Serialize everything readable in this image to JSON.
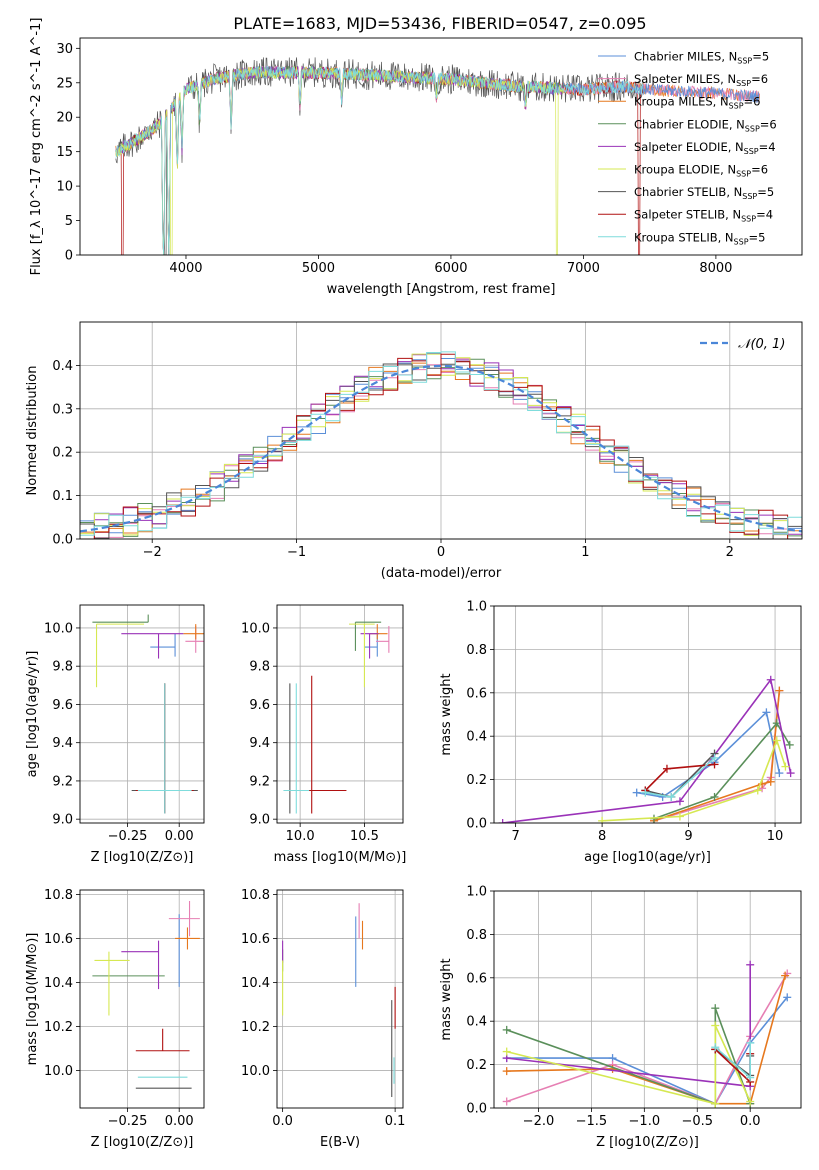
{
  "figure_title": "PLATE=1683, MJD=53436, FIBERID=0547, z=0.095",
  "colors": {
    "Chabrier MILES": "#5b8fd8",
    "Salpeter MILES": "#e67fb3",
    "Kroupa MILES": "#e6781e",
    "Chabrier ELODIE": "#5a8f5a",
    "Salpeter ELODIE": "#9a32b8",
    "Kroupa ELODIE": "#d6e852",
    "Chabrier STELIB": "#555555",
    "Salpeter STELIB": "#b01010",
    "Kroupa STELIB": "#7fdcdc"
  },
  "chart_data": [
    {
      "id": "spectrum",
      "type": "line",
      "xlabel": "wavelength [Angstrom, rest frame]",
      "ylabel": "Flux [f_λ 10^-17 erg cm^-2 s^-1 A^-1]",
      "xlim": [
        3200,
        8650
      ],
      "ylim": [
        0,
        31.5
      ],
      "xticks": [
        4000,
        5000,
        6000,
        7000,
        8000
      ],
      "yticks": [
        0,
        5,
        10,
        15,
        20,
        25,
        30
      ],
      "grid": false,
      "legend_position": "top-right",
      "legend": [
        {
          "name": "Chabrier MILES",
          "n": "5"
        },
        {
          "name": "Salpeter MILES",
          "n": "6"
        },
        {
          "name": "Kroupa MILES",
          "n": "6"
        },
        {
          "name": "Chabrier ELODIE",
          "n": "6"
        },
        {
          "name": "Salpeter ELODIE",
          "n": "4"
        },
        {
          "name": "Kroupa ELODIE",
          "n": "6"
        },
        {
          "name": "Chabrier STELIB",
          "n": "5"
        },
        {
          "name": "Salpeter STELIB",
          "n": "4"
        },
        {
          "name": "Kroupa STELIB",
          "n": "5"
        }
      ],
      "continuum_x": [
        3480,
        3650,
        3800,
        4000,
        4200,
        4500,
        5000,
        5500,
        6000,
        6500,
        7000,
        7300,
        7500,
        8000,
        8300
      ],
      "continuum_y": [
        15,
        17,
        19,
        24,
        25.5,
        26.5,
        26.5,
        26,
        25.5,
        24.5,
        24,
        24.5,
        24,
        23.5,
        23
      ],
      "features": [
        {
          "x": 3830,
          "depth": 26
        },
        {
          "x": 3870,
          "depth": 25
        },
        {
          "x": 3934,
          "depth": 10
        },
        {
          "x": 3970,
          "depth": 8
        },
        {
          "x": 4102,
          "depth": 6
        },
        {
          "x": 4340,
          "depth": 7
        },
        {
          "x": 4861,
          "depth": 5
        },
        {
          "x": 5175,
          "depth": 4
        },
        {
          "x": 5892,
          "depth": 3
        },
        {
          "x": 6563,
          "depth": 3
        }
      ],
      "drops": [
        {
          "x": 3520,
          "series": "Salpeter STELIB"
        },
        {
          "x": 3845,
          "series": "Chabrier STELIB"
        },
        {
          "x": 3890,
          "series": "Kroupa ELODIE"
        },
        {
          "x": 6800,
          "series": "Kroupa ELODIE"
        },
        {
          "x": 7420,
          "series": "Salpeter STELIB"
        }
      ]
    },
    {
      "id": "residual-histogram",
      "type": "histogram",
      "xlabel": "(data-model)/error",
      "ylabel": "Normed distribution",
      "xlim": [
        -2.5,
        2.5
      ],
      "ylim": [
        0,
        0.5
      ],
      "xticks": [
        -2,
        -1,
        0,
        1,
        2
      ],
      "yticks": [
        0.0,
        0.1,
        0.2,
        0.3,
        0.4
      ],
      "grid": true,
      "legend_position": "top-right",
      "reference": {
        "label": "N(0,1)",
        "mean": 0,
        "sigma": 1
      },
      "bin_width": 0.1,
      "series_count": 9
    },
    {
      "id": "age-vs-Z",
      "type": "errorbar",
      "xlabel": "Z [log10(Z/Z⊙)]",
      "ylabel": "age [log10(age/yr)]",
      "xlim": [
        -0.48,
        0.12
      ],
      "ylim": [
        8.98,
        10.12
      ],
      "xticks": [
        -0.25,
        0.0
      ],
      "yticks": [
        9.0,
        9.2,
        9.4,
        9.6,
        9.8,
        10.0
      ],
      "grid": true,
      "points": [
        {
          "series": "Chabrier MILES",
          "x": -0.02,
          "xerr": [
            0.12,
            0.0
          ],
          "y": 9.9,
          "yerr": [
            0.05,
            0.07
          ]
        },
        {
          "series": "Salpeter MILES",
          "x": 0.08,
          "xerr": [
            0.05,
            0.06
          ],
          "y": 9.93,
          "yerr": [
            0.06,
            0.08
          ]
        },
        {
          "series": "Kroupa MILES",
          "x": 0.08,
          "xerr": [
            0.06,
            0.04
          ],
          "y": 9.97,
          "yerr": [
            0.03,
            0.05
          ]
        },
        {
          "series": "Chabrier ELODIE",
          "x": -0.15,
          "xerr": [
            0.27,
            0.0
          ],
          "y": 10.03,
          "yerr": [
            0.0,
            0.04
          ]
        },
        {
          "series": "Salpeter ELODIE",
          "x": -0.1,
          "xerr": [
            0.18,
            0.12
          ],
          "y": 9.97,
          "yerr": [
            0.13,
            0.0
          ]
        },
        {
          "series": "Kroupa ELODIE",
          "x": -0.4,
          "xerr": [
            0.0,
            0.23
          ],
          "y": 10.02,
          "yerr": [
            0.33,
            0.0
          ]
        },
        {
          "series": "Chabrier STELIB",
          "x": -0.07,
          "xerr": [
            0.16,
            0.16
          ],
          "y": 9.15,
          "yerr": [
            0.12,
            0.56
          ]
        },
        {
          "series": "Salpeter STELIB",
          "x": -0.07,
          "xerr": [
            0.14,
            0.14
          ],
          "y": 9.15,
          "yerr": [
            0.12,
            0.56
          ]
        },
        {
          "series": "Kroupa STELIB",
          "x": -0.07,
          "xerr": [
            0.13,
            0.13
          ],
          "y": 9.15,
          "yerr": [
            0.12,
            0.56
          ]
        }
      ]
    },
    {
      "id": "age-vs-mass",
      "type": "errorbar",
      "xlabel": "mass [log10(M/M⊙)]",
      "xlim": [
        9.82,
        10.8
      ],
      "ylim": [
        8.98,
        10.12
      ],
      "xticks": [
        10.0,
        10.5
      ],
      "yticks": [
        9.0,
        9.2,
        9.4,
        9.6,
        9.8,
        10.0
      ],
      "grid": true,
      "points": [
        {
          "series": "Chabrier MILES",
          "x": 10.6,
          "xerr": [
            0.1,
            0.0
          ],
          "y": 9.9,
          "yerr": [
            0.05,
            0.07
          ]
        },
        {
          "series": "Salpeter MILES",
          "x": 10.69,
          "xerr": [
            0.1,
            0.0
          ],
          "y": 9.93,
          "yerr": [
            0.06,
            0.08
          ]
        },
        {
          "series": "Kroupa MILES",
          "x": 10.6,
          "xerr": [
            0.06,
            0.08
          ],
          "y": 9.97,
          "yerr": [
            0.03,
            0.05
          ]
        },
        {
          "series": "Chabrier ELODIE",
          "x": 10.43,
          "xerr": [
            0.0,
            0.2
          ],
          "y": 10.03,
          "yerr": [
            0.15,
            0.0
          ]
        },
        {
          "series": "Salpeter ELODIE",
          "x": 10.54,
          "xerr": [
            0.07,
            0.07
          ],
          "y": 9.97,
          "yerr": [
            0.13,
            0.0
          ]
        },
        {
          "series": "Kroupa ELODIE",
          "x": 10.5,
          "xerr": [
            0.12,
            0.08
          ],
          "y": 10.02,
          "yerr": [
            0.33,
            0.0
          ]
        },
        {
          "series": "Chabrier STELIB",
          "x": 9.92,
          "xerr": [
            0.0,
            0.0
          ],
          "y": 9.15,
          "yerr": [
            0.12,
            0.56
          ]
        },
        {
          "series": "Salpeter STELIB",
          "x": 10.09,
          "xerr": [
            0.21,
            0.27
          ],
          "y": 9.15,
          "yerr": [
            0.12,
            0.6
          ]
        },
        {
          "series": "Kroupa STELIB",
          "x": 9.97,
          "xerr": [
            0.1,
            0.1
          ],
          "y": 9.15,
          "yerr": [
            0.12,
            0.56
          ]
        }
      ]
    },
    {
      "id": "mass-weight-vs-age",
      "type": "line",
      "xlabel": "age [log10(age/yr)]",
      "ylabel": "mass weight",
      "xlim": [
        6.75,
        10.3
      ],
      "ylim": [
        0,
        1.0
      ],
      "xticks": [
        7,
        8,
        9,
        10
      ],
      "yticks": [
        0.0,
        0.2,
        0.4,
        0.6,
        0.8,
        1.0
      ],
      "grid": true,
      "series": [
        {
          "name": "Chabrier MILES",
          "x": [
            8.4,
            8.7,
            9.3,
            9.9,
            10.05
          ],
          "y": [
            0.14,
            0.12,
            0.28,
            0.51,
            0.23
          ]
        },
        {
          "name": "Salpeter MILES",
          "x": [
            8.6,
            9.85,
            9.95,
            10.05
          ],
          "y": [
            0.01,
            0.16,
            0.21,
            0.61
          ]
        },
        {
          "name": "Kroupa MILES",
          "x": [
            8.6,
            9.85,
            9.95,
            10.05
          ],
          "y": [
            0.01,
            0.18,
            0.19,
            0.61
          ]
        },
        {
          "name": "Chabrier ELODIE",
          "x": [
            8.6,
            9.3,
            10.02,
            10.17
          ],
          "y": [
            0.02,
            0.12,
            0.46,
            0.36
          ]
        },
        {
          "name": "Salpeter ELODIE",
          "x": [
            6.85,
            8.9,
            9.95,
            10.18
          ],
          "y": [
            0.0,
            0.1,
            0.66,
            0.23
          ]
        },
        {
          "name": "Kroupa ELODIE",
          "x": [
            8.0,
            8.9,
            9.8,
            10.02,
            10.12
          ],
          "y": [
            0.01,
            0.03,
            0.15,
            0.38,
            0.26
          ]
        },
        {
          "name": "Chabrier STELIB",
          "x": [
            8.5,
            8.8,
            9.3
          ],
          "y": [
            0.15,
            0.12,
            0.32
          ]
        },
        {
          "name": "Salpeter STELIB",
          "x": [
            8.5,
            8.75,
            9.3
          ],
          "y": [
            0.15,
            0.25,
            0.27
          ]
        },
        {
          "name": "Kroupa STELIB",
          "x": [
            8.5,
            8.8,
            9.3
          ],
          "y": [
            0.14,
            0.12,
            0.3
          ]
        }
      ]
    },
    {
      "id": "mass-vs-Z",
      "type": "errorbar",
      "xlabel": "Z [log10(Z/Z⊙)]",
      "ylabel": "mass [log10(M/M⊙)]",
      "xlim": [
        -0.48,
        0.12
      ],
      "ylim": [
        9.83,
        10.82
      ],
      "xticks": [
        -0.25,
        0.0
      ],
      "yticks": [
        10.0,
        10.2,
        10.4,
        10.6,
        10.8
      ],
      "grid": true,
      "points": [
        {
          "series": "Chabrier MILES",
          "x": 0.0,
          "xerr": [
            0.0,
            0.0
          ],
          "y": 10.6,
          "yerr": [
            0.22,
            0.11
          ]
        },
        {
          "series": "Salpeter MILES",
          "x": 0.05,
          "xerr": [
            0.1,
            0.05
          ],
          "y": 10.69,
          "yerr": [
            0.08,
            0.08
          ]
        },
        {
          "series": "Kroupa MILES",
          "x": 0.04,
          "xerr": [
            0.06,
            0.06
          ],
          "y": 10.6,
          "yerr": [
            0.05,
            0.05
          ]
        },
        {
          "series": "Chabrier ELODIE",
          "x": -0.25,
          "xerr": [
            0.17,
            0.18
          ],
          "y": 10.43,
          "yerr": [
            0.0,
            0.0
          ]
        },
        {
          "series": "Salpeter ELODIE",
          "x": -0.1,
          "xerr": [
            0.18,
            0.0
          ],
          "y": 10.54,
          "yerr": [
            0.17,
            0.05
          ]
        },
        {
          "series": "Kroupa ELODIE",
          "x": -0.34,
          "xerr": [
            0.07,
            0.1
          ],
          "y": 10.5,
          "yerr": [
            0.25,
            0.04
          ]
        },
        {
          "series": "Chabrier STELIB",
          "x": -0.07,
          "xerr": [
            0.14,
            0.13
          ],
          "y": 9.92,
          "yerr": [
            0.0,
            0.0
          ]
        },
        {
          "series": "Salpeter STELIB",
          "x": -0.08,
          "xerr": [
            0.13,
            0.13
          ],
          "y": 10.09,
          "yerr": [
            0.0,
            0.1
          ]
        },
        {
          "series": "Kroupa STELIB",
          "x": -0.08,
          "xerr": [
            0.12,
            0.12
          ],
          "y": 9.97,
          "yerr": [
            0.0,
            0.0
          ]
        }
      ]
    },
    {
      "id": "mass-vs-EBV",
      "type": "errorbar",
      "xlabel": "E(B-V)",
      "xlim": [
        -0.005,
        0.107
      ],
      "ylim": [
        9.83,
        10.82
      ],
      "xticks": [
        0.0,
        0.1
      ],
      "yticks": [
        10.0,
        10.2,
        10.4,
        10.6,
        10.8
      ],
      "grid": true,
      "points": [
        {
          "series": "Chabrier MILES",
          "x": 0.065,
          "y": 10.55,
          "yerr": [
            0.17,
            0.15
          ]
        },
        {
          "series": "Salpeter MILES",
          "x": 0.068,
          "y": 10.69,
          "yerr": [
            0.09,
            0.07
          ]
        },
        {
          "series": "Kroupa MILES",
          "x": 0.071,
          "y": 10.62,
          "yerr": [
            0.07,
            0.06
          ]
        },
        {
          "series": "Chabrier ELODIE",
          "x": 0.0,
          "y": 10.5,
          "yerr": [
            0.05,
            0.05
          ]
        },
        {
          "series": "Salpeter ELODIE",
          "x": 0.0,
          "y": 10.54,
          "yerr": [
            0.05,
            0.05
          ]
        },
        {
          "series": "Kroupa ELODIE",
          "x": 0.0,
          "y": 10.4,
          "yerr": [
            0.15,
            0.1
          ]
        },
        {
          "series": "Chabrier STELIB",
          "x": 0.097,
          "y": 10.1,
          "yerr": [
            0.22,
            0.22
          ]
        },
        {
          "series": "Salpeter STELIB",
          "x": 0.1,
          "y": 10.28,
          "yerr": [
            0.09,
            0.1
          ]
        },
        {
          "series": "Kroupa STELIB",
          "x": 0.099,
          "y": 10.0,
          "yerr": [
            0.06,
            0.06
          ]
        }
      ]
    },
    {
      "id": "mass-weight-vs-Z",
      "type": "line",
      "xlabel": "Z [log10(Z/Z⊙)]",
      "ylabel": "mass weight",
      "xlim": [
        -2.42,
        0.48
      ],
      "ylim": [
        0,
        1.0
      ],
      "xticks": [
        -2.0,
        -1.5,
        -1.0,
        -0.5,
        0.0
      ],
      "yticks": [
        0.0,
        0.2,
        0.4,
        0.6,
        0.8,
        1.0
      ],
      "grid": true,
      "series": [
        {
          "name": "Chabrier MILES",
          "x": [
            -2.3,
            -1.3,
            -0.33,
            0.0,
            0.35
          ],
          "y": [
            0.23,
            0.23,
            0.02,
            0.3,
            0.51
          ]
        },
        {
          "name": "Salpeter MILES",
          "x": [
            -2.3,
            -1.3,
            -0.33,
            0.0,
            0.35
          ],
          "y": [
            0.03,
            0.2,
            0.02,
            0.33,
            0.62
          ]
        },
        {
          "name": "Kroupa MILES",
          "x": [
            -2.3,
            -1.3,
            -0.33,
            0.0,
            0.33
          ],
          "y": [
            0.17,
            0.18,
            0.02,
            0.02,
            0.61
          ]
        },
        {
          "name": "Chabrier ELODIE",
          "x": [
            -2.3,
            -0.33,
            -0.33,
            0.0
          ],
          "y": [
            0.36,
            0.02,
            0.46,
            0.02
          ]
        },
        {
          "name": "Salpeter ELODIE",
          "x": [
            -2.3,
            0.0,
            0.0
          ],
          "y": [
            0.23,
            0.1,
            0.66
          ]
        },
        {
          "name": "Kroupa ELODIE",
          "x": [
            -2.3,
            -0.33,
            -0.33,
            0.0
          ],
          "y": [
            0.26,
            0.02,
            0.38,
            0.03
          ]
        },
        {
          "name": "Chabrier STELIB",
          "x": [
            -0.33,
            0.0,
            0.0
          ],
          "y": [
            0.27,
            0.15,
            0.24
          ]
        },
        {
          "name": "Salpeter STELIB",
          "x": [
            -0.33,
            0.0,
            0.0
          ],
          "y": [
            0.27,
            0.12,
            0.25
          ]
        },
        {
          "name": "Kroupa STELIB",
          "x": [
            -0.33,
            0.0,
            0.0
          ],
          "y": [
            0.28,
            0.14,
            0.3
          ]
        }
      ]
    }
  ]
}
